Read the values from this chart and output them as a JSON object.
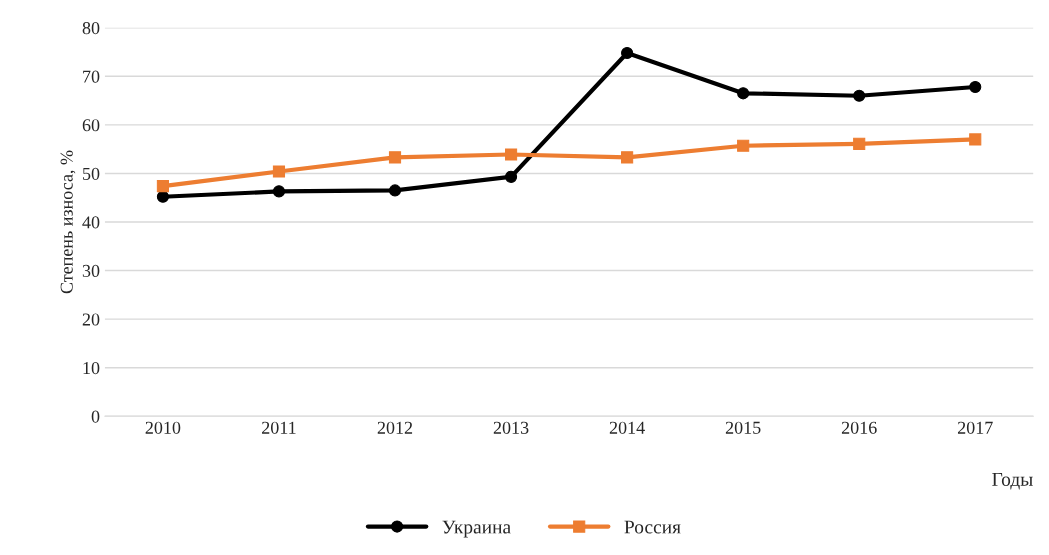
{
  "chart_data": {
    "type": "line",
    "xlabel": "Годы",
    "ylabel": "Степень износа, %",
    "categories": [
      "2010",
      "2011",
      "2012",
      "2013",
      "2014",
      "2015",
      "2016",
      "2017"
    ],
    "series": [
      {
        "name": "Украина",
        "color": "#000000",
        "marker": "circle",
        "values": [
          45.2,
          46.3,
          46.5,
          49.3,
          74.8,
          66.5,
          66.0,
          67.8
        ]
      },
      {
        "name": "Россия",
        "color": "#ed7d31",
        "marker": "square",
        "values": [
          47.4,
          50.4,
          53.3,
          53.9,
          53.3,
          55.7,
          56.1,
          57.0
        ]
      }
    ],
    "ylim": [
      0,
      80
    ],
    "yticks": [
      0,
      10,
      20,
      30,
      40,
      50,
      60,
      70,
      80
    ],
    "grid": "y",
    "legend": "bottom",
    "line_style": "solid"
  }
}
